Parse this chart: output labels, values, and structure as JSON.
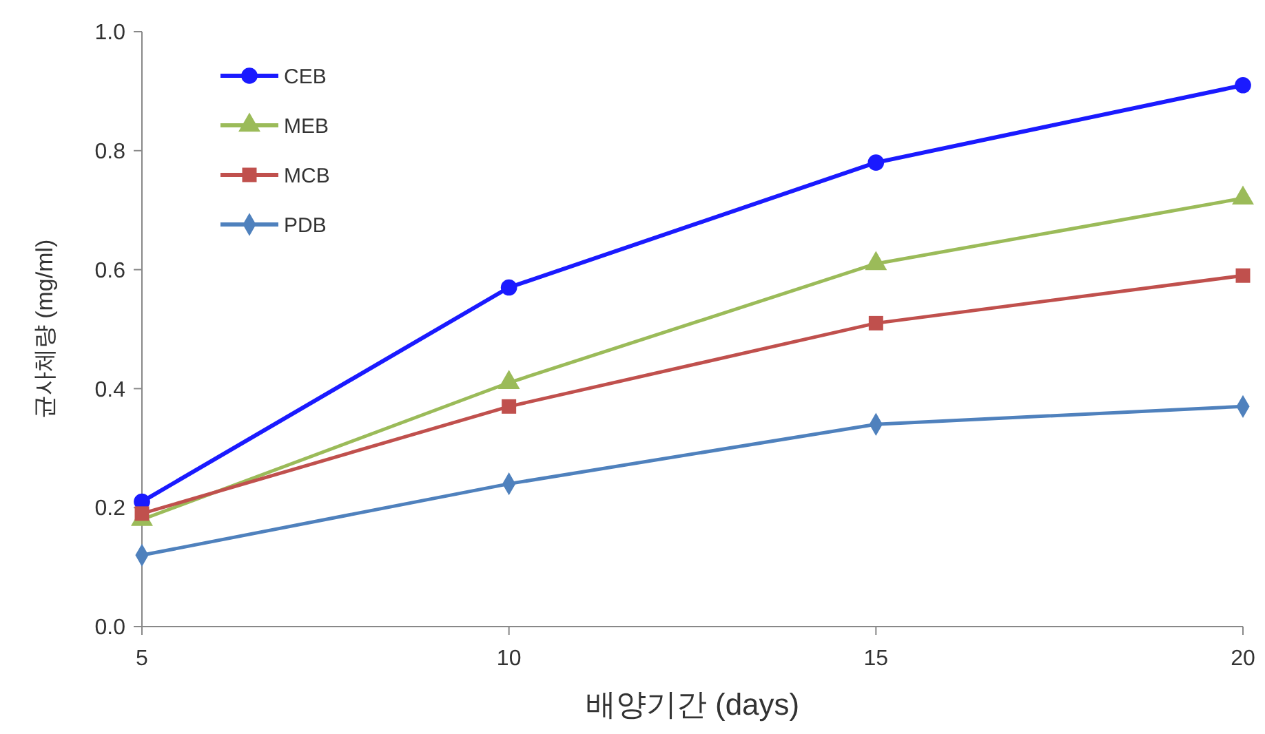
{
  "chart_data": {
    "type": "line",
    "xlabel": "배양기간 (days)",
    "ylabel": "균사체량 (mg/ml)",
    "x": [
      5,
      10,
      15,
      20
    ],
    "series": [
      {
        "name": "CEB",
        "color": "#1a1aff",
        "marker": "circle",
        "values": [
          0.21,
          0.57,
          0.78,
          0.91
        ]
      },
      {
        "name": "MEB",
        "color": "#9bbb59",
        "marker": "triangle",
        "values": [
          0.18,
          0.41,
          0.61,
          0.72
        ]
      },
      {
        "name": "MCB",
        "color": "#c0504d",
        "marker": "square",
        "values": [
          0.19,
          0.37,
          0.51,
          0.59
        ]
      },
      {
        "name": "PDB",
        "color": "#4f81bd",
        "marker": "diamond",
        "values": [
          0.12,
          0.24,
          0.34,
          0.37
        ]
      }
    ],
    "xlim": [
      5,
      20
    ],
    "xticks": [
      5,
      10,
      15,
      20
    ],
    "ylim": [
      0,
      1
    ],
    "yticks": [
      {
        "value": 0,
        "label": "0.0"
      },
      {
        "value": 0.2,
        "label": "0.2"
      },
      {
        "value": 0.4,
        "label": "0.4"
      },
      {
        "value": 0.6,
        "label": "0.6"
      },
      {
        "value": 0.8,
        "label": "0.8"
      },
      {
        "value": 1,
        "label": "1.0"
      }
    ],
    "grid": false,
    "legend": "top left"
  }
}
